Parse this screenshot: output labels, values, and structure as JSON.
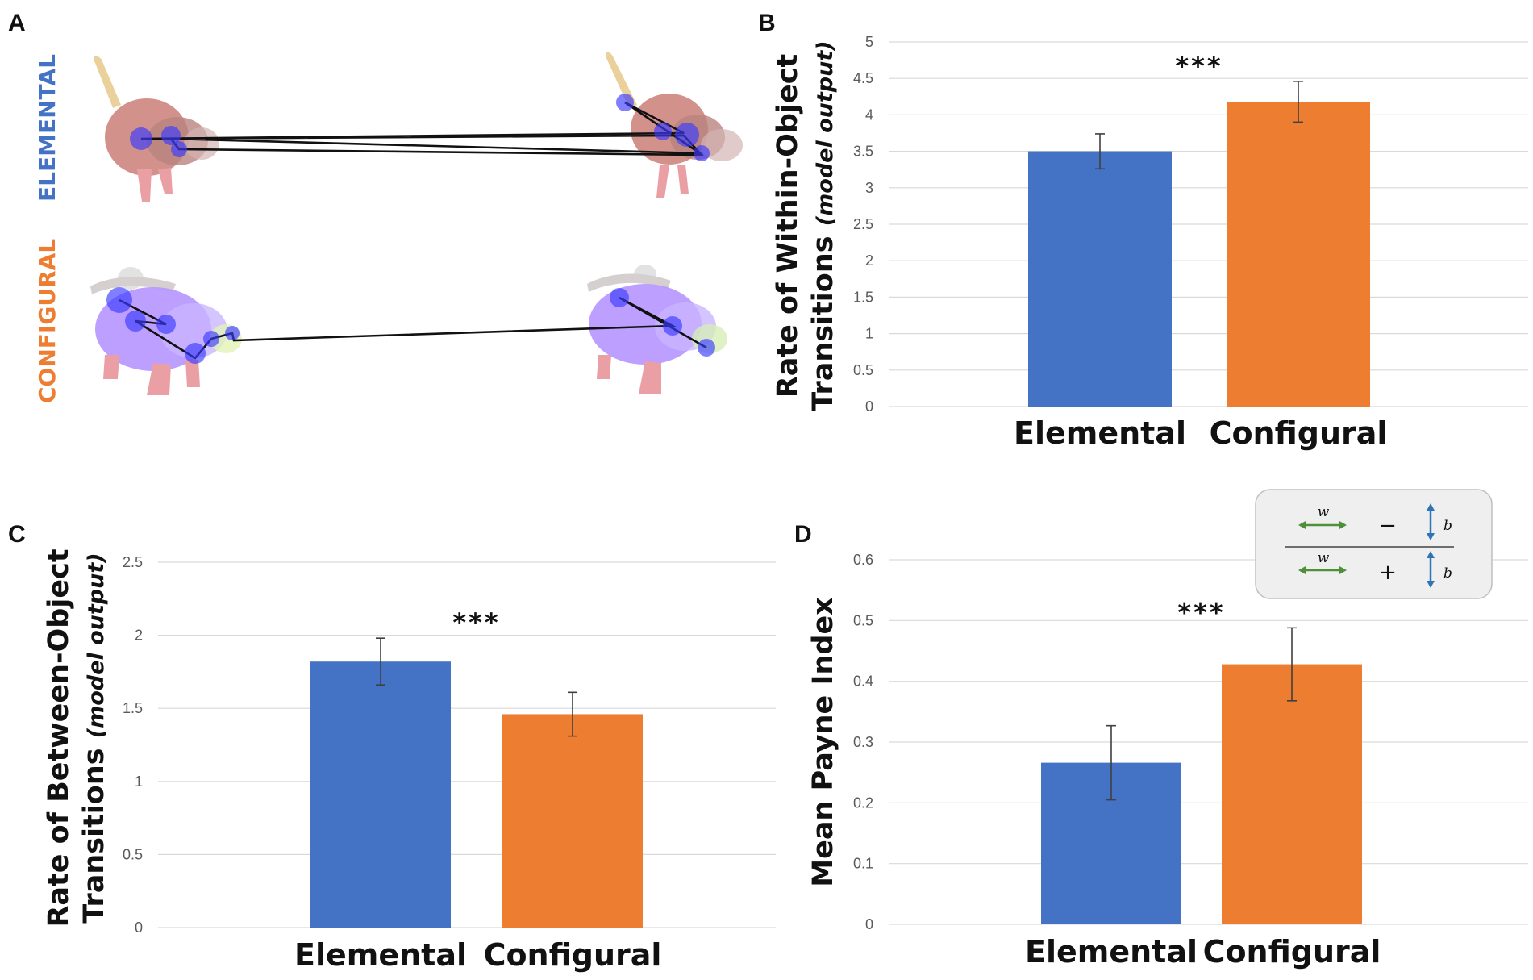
{
  "colors": {
    "elemental": "#4472C4",
    "configural": "#ED7D31",
    "grid": "#D9D9D9",
    "legend_w": "#4E8F3A",
    "legend_b": "#2E75B6"
  },
  "panel_a": {
    "letter": "A",
    "rows": [
      {
        "label": "ELEMENTAL",
        "color": "#4472C4"
      },
      {
        "label": "CONFIGURAL",
        "color": "#ED7D31"
      }
    ]
  },
  "chart_data": [
    {
      "panel": "B",
      "type": "bar",
      "categories": [
        "Elemental",
        "Configural"
      ],
      "values": [
        3.5,
        4.18
      ],
      "errors": [
        0.24,
        0.28
      ],
      "ylabel": "Rate of Within-Object",
      "ylabel2": "Transitions",
      "ylabel2_italic": "(model output)",
      "ylim": [
        0,
        5
      ],
      "yticks": [
        "0",
        "0.5",
        "1",
        "1.5",
        "2",
        "2.5",
        "3",
        "3.5",
        "4",
        "4.5",
        "5"
      ],
      "significance": "***",
      "grid": true
    },
    {
      "panel": "C",
      "type": "bar",
      "categories": [
        "Elemental",
        "Configural"
      ],
      "values": [
        1.82,
        1.46
      ],
      "errors": [
        0.16,
        0.15
      ],
      "ylabel": "Rate of Between-Object",
      "ylabel2": "Transitions",
      "ylabel2_italic": "(model output)",
      "ylim": [
        0,
        2.5
      ],
      "yticks": [
        "0",
        "0.5",
        "1",
        "1.5",
        "2",
        "2.5"
      ],
      "significance": "***",
      "grid": true
    },
    {
      "panel": "D",
      "type": "bar",
      "categories": [
        "Elemental",
        "Configural"
      ],
      "values": [
        0.266,
        0.428
      ],
      "errors": [
        0.061,
        0.06
      ],
      "ylabel": "Mean Payne Index",
      "ylim": [
        0,
        0.6
      ],
      "yticks": [
        "0",
        "0.1",
        "0.2",
        "0.3",
        "0.4",
        "0.5",
        "0.6"
      ],
      "significance": "***",
      "grid": true,
      "legend": {
        "w": "w",
        "b": "b",
        "minus": "−",
        "plus": "+"
      }
    }
  ]
}
